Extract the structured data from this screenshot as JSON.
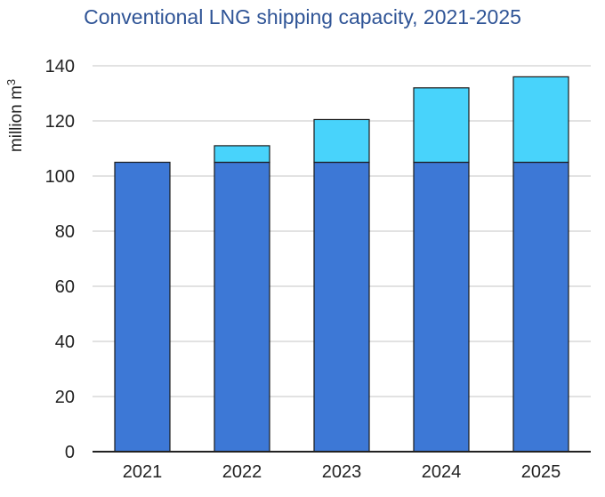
{
  "chart_data": {
    "type": "bar",
    "stacked": true,
    "title": "Conventional LNG shipping capacity, 2021-2025",
    "ylabel": "million m",
    "ylabel_superscript": "3",
    "categories": [
      "2021",
      "2022",
      "2023",
      "2024",
      "2025"
    ],
    "series": [
      {
        "values": [
          105,
          105,
          105,
          105,
          105
        ],
        "color": "#3d78d6"
      },
      {
        "values": [
          0,
          6,
          15.5,
          27,
          31
        ],
        "color": "#48d3fb"
      }
    ],
    "ylim": [
      0,
      140
    ],
    "yticks": [
      0,
      20,
      40,
      60,
      80,
      100,
      120,
      140
    ],
    "grid": true,
    "legend": "none"
  }
}
